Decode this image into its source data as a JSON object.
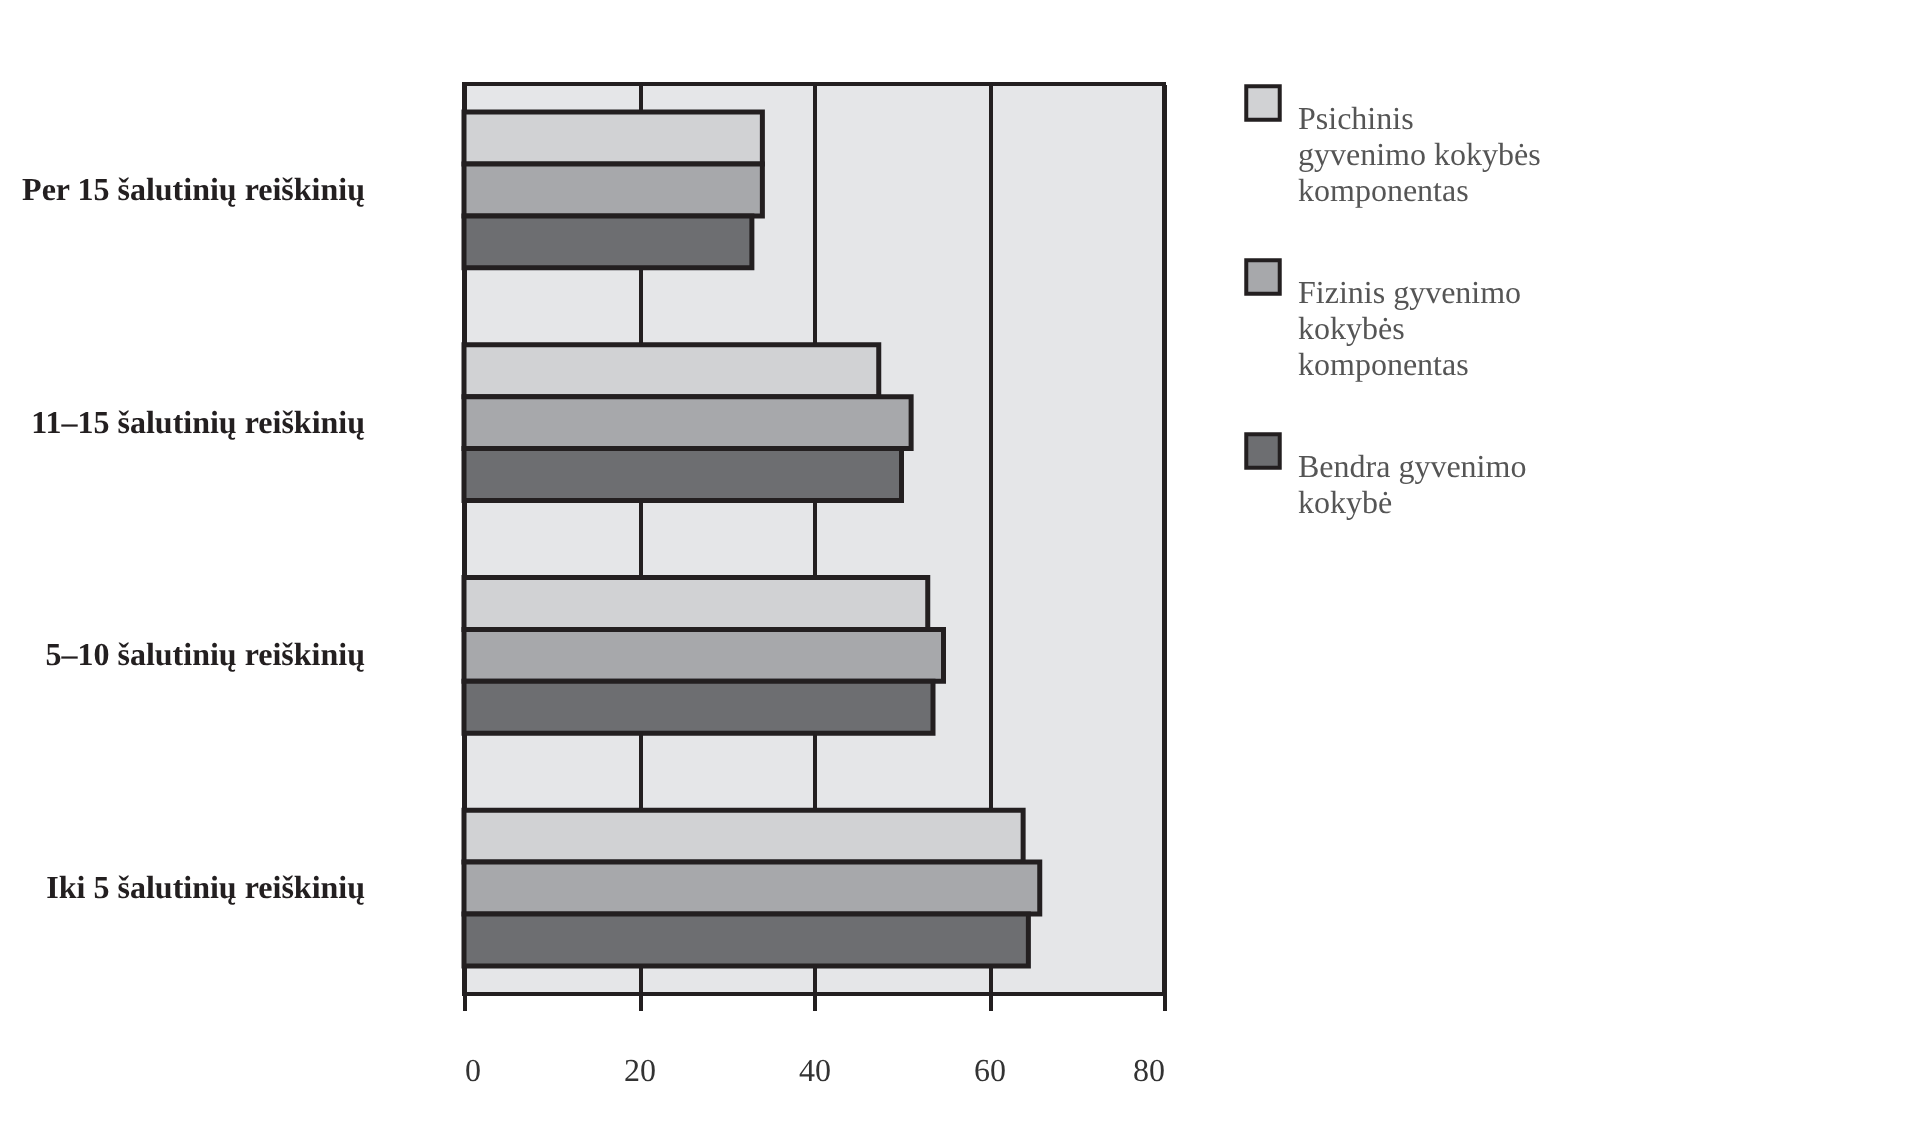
{
  "chart_data": {
    "type": "bar",
    "orientation": "horizontal",
    "categories": [
      "Per 15 šalutinių reiškinių",
      "11–15 šalutinių reiškinių",
      "5–10 šalutinių reiškinių",
      "Iki 5 šalutinių reiškinių"
    ],
    "series": [
      {
        "name": "Psichinis gyvenimo kokybės komponentas",
        "color": "#d1d2d4",
        "values": [
          34.1,
          47.4,
          53.0,
          63.9
        ]
      },
      {
        "name": "Fizinis gyvenimo kokybės komponentas",
        "color": "#a7a8ab",
        "values": [
          34.1,
          51.1,
          54.8,
          65.8
        ]
      },
      {
        "name": "Bendra gyvenimo kokybė",
        "color": "#6d6e71",
        "values": [
          32.9,
          50.0,
          53.6,
          64.5
        ]
      }
    ],
    "xlim": [
      0,
      80
    ],
    "xticks": [
      0,
      20,
      40,
      60,
      80
    ],
    "grid": "x",
    "legend": "right"
  }
}
